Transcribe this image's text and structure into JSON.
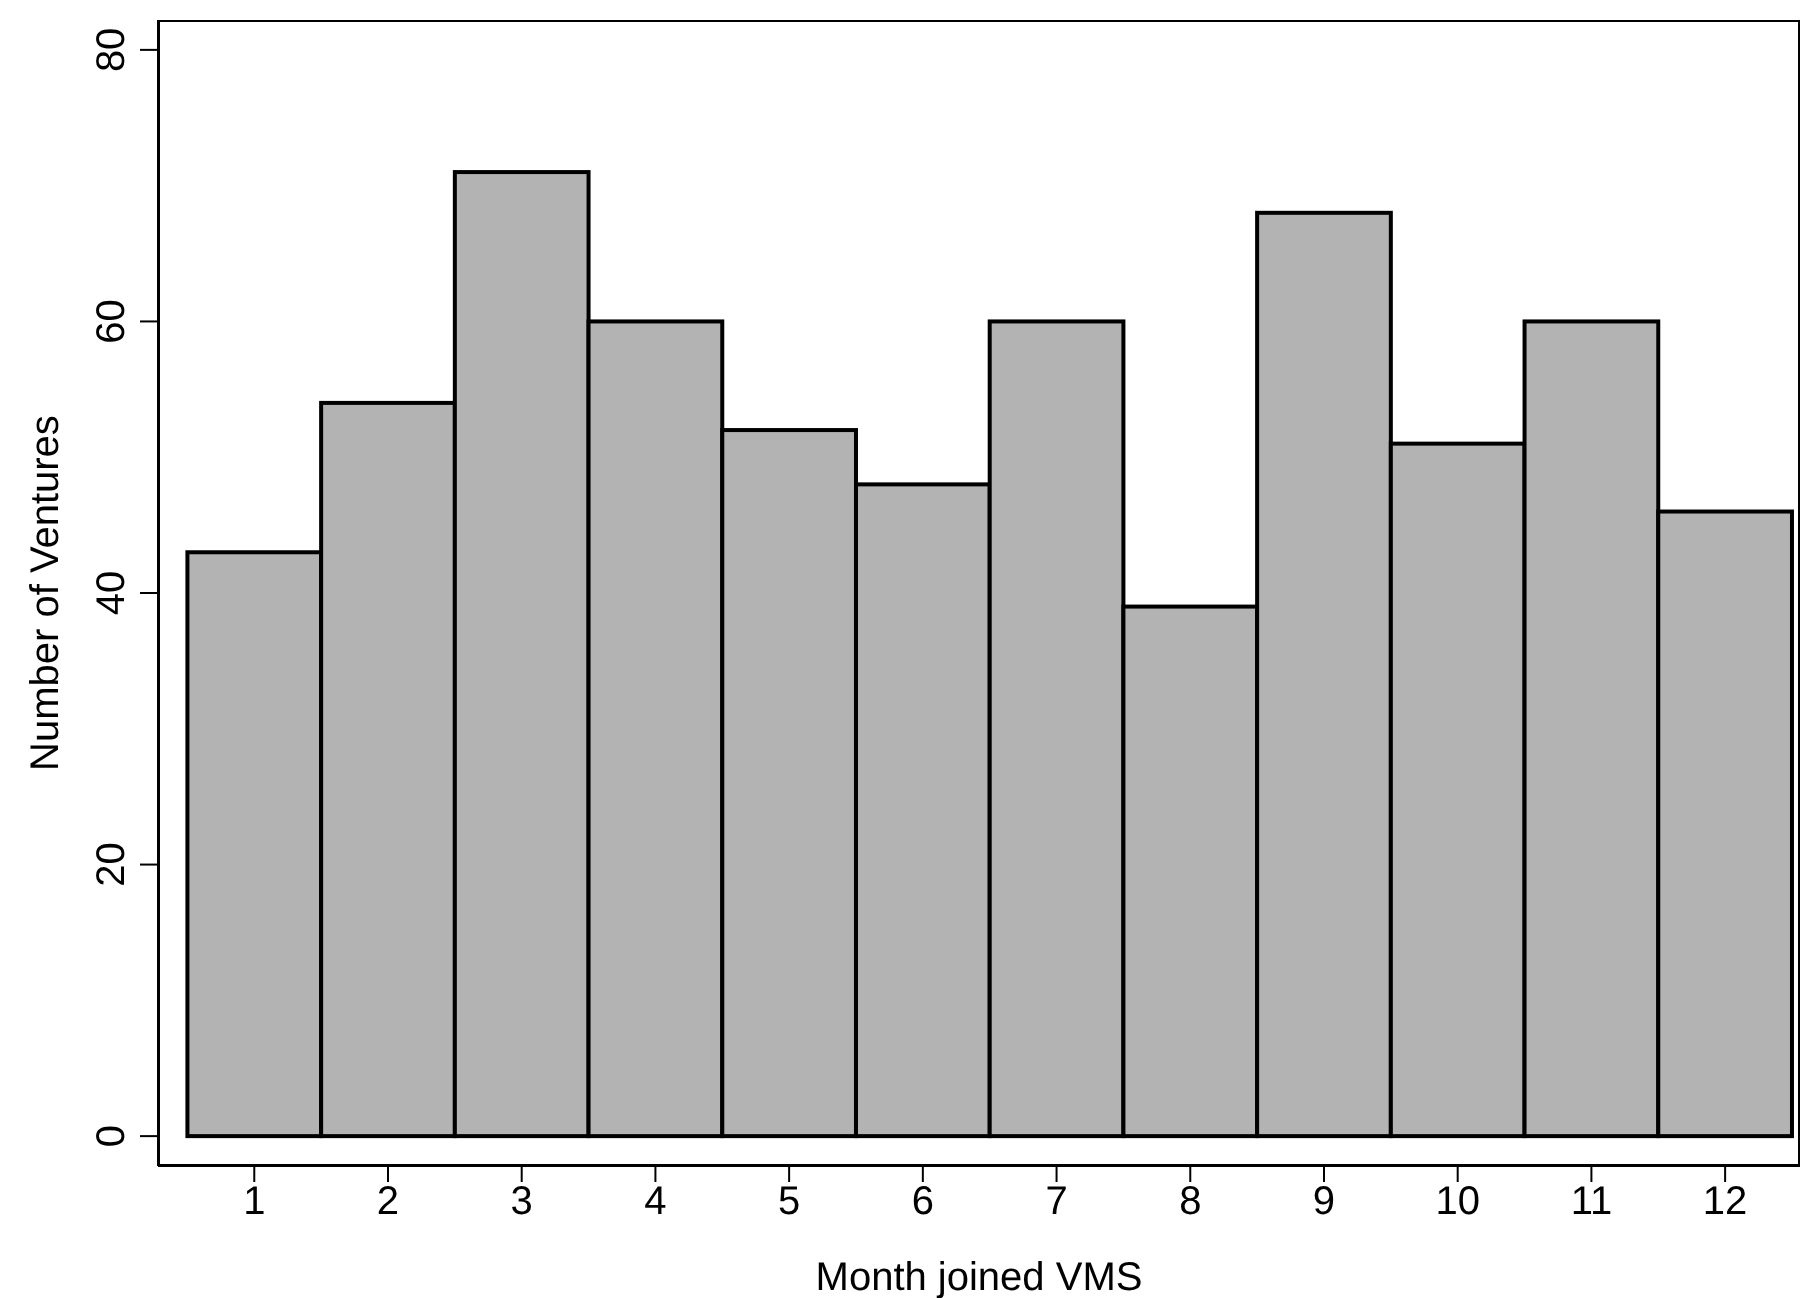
{
  "chart_data": {
    "type": "histogram",
    "xlabel": "Month joined VMS",
    "ylabel": "Number of Ventures",
    "bins": [
      0.5,
      1.5,
      2.5,
      3.5,
      4.5,
      5.5,
      6.5,
      7.5,
      8.5,
      9.5,
      10.5,
      11.5,
      12.5
    ],
    "values": [
      43,
      54,
      71,
      60,
      52,
      48,
      60,
      39,
      68,
      51,
      60,
      46
    ],
    "color": "#b3b3b3",
    "xlim": [
      0.28,
      12.56
    ],
    "xticks": [
      1,
      2,
      3,
      4,
      5,
      6,
      7,
      8,
      9,
      10,
      11,
      12
    ],
    "ylim": [
      -2.2,
      82.2
    ],
    "yticks": [
      0,
      20,
      40,
      60,
      80
    ],
    "grid": false,
    "legend": false
  }
}
